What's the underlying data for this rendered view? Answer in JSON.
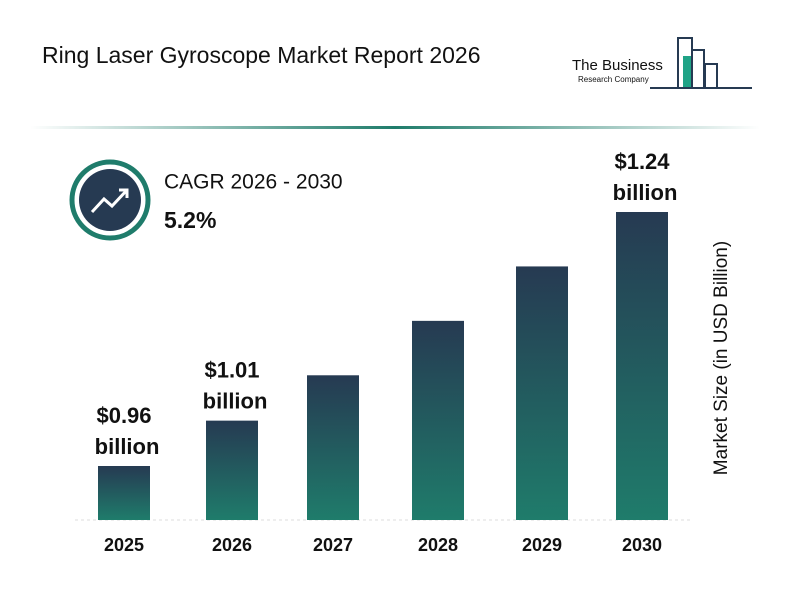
{
  "chart_data": {
    "type": "bar",
    "title": "Ring Laser Gyroscope Market Report 2026",
    "brand": [
      "The Business",
      "Research Company"
    ],
    "cagr_label": "CAGR 2026 - 2030",
    "cagr_value": "5.2%",
    "y_label": "Market Size (in USD Billion)",
    "categories": [
      "2025",
      "2026",
      "2027",
      "2028",
      "2029",
      "2030"
    ],
    "values": [
      0.96,
      1.01,
      1.06,
      1.12,
      1.18,
      1.24
    ],
    "value_labels": [
      "$0.96 billion",
      "$1.01 billion",
      null,
      null,
      null,
      "$1.24 billion"
    ],
    "color": [
      "#263a52",
      "#1f7c6b"
    ]
  }
}
